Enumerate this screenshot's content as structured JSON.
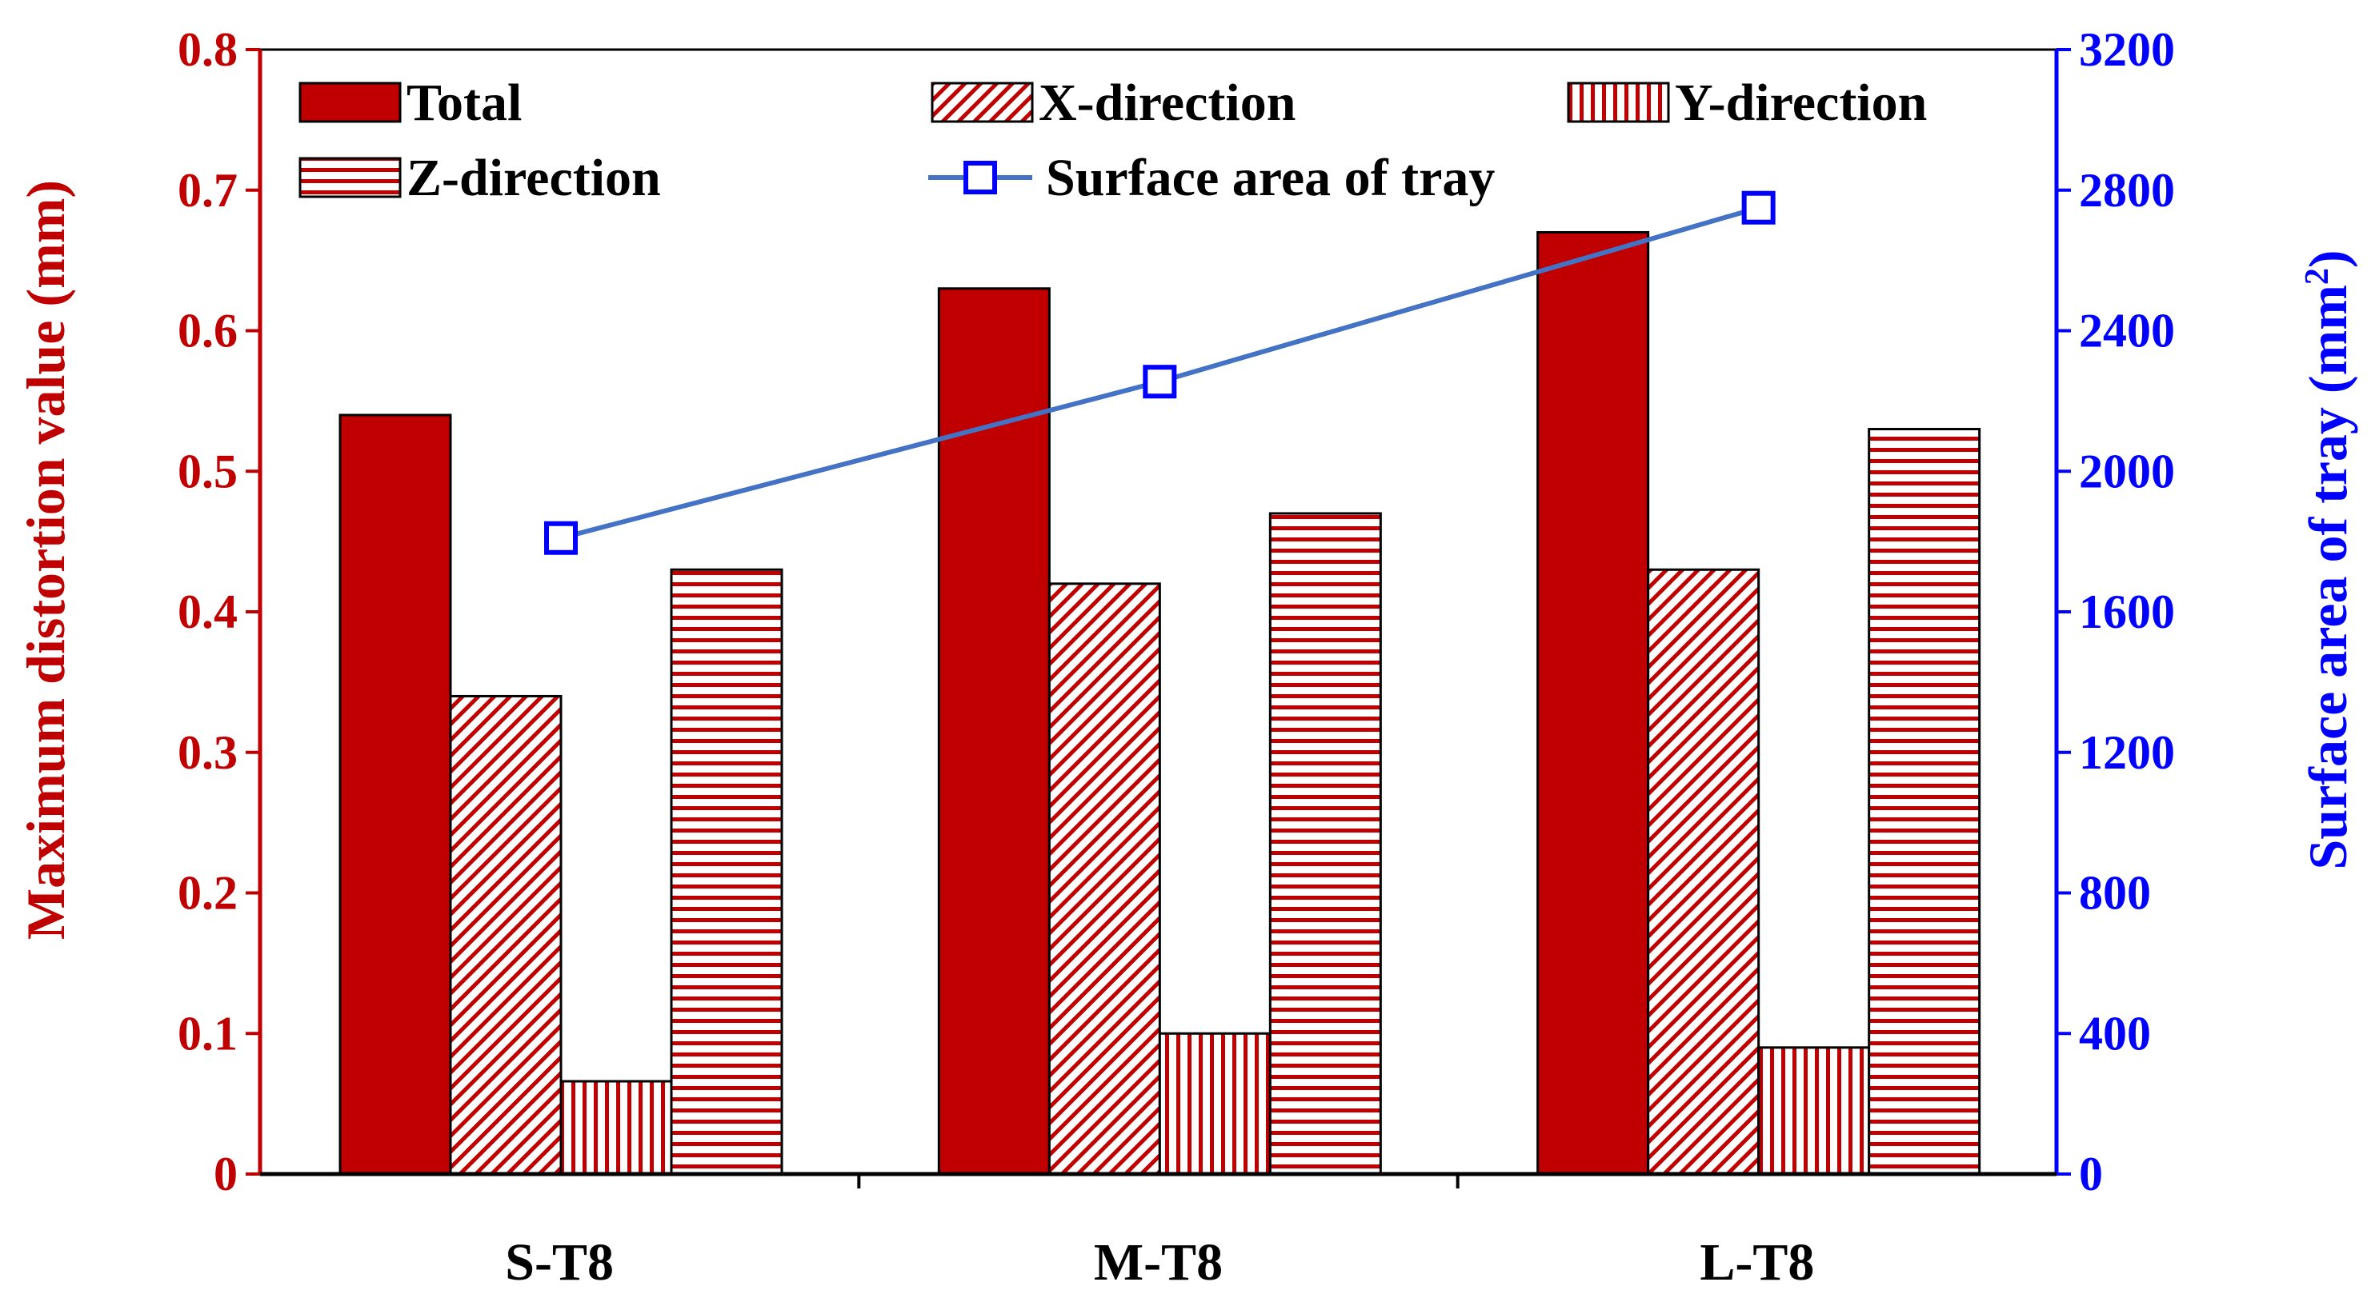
{
  "chart_data": {
    "type": "bar",
    "categories": [
      "S-T8",
      "M-T8",
      "L-T8"
    ],
    "series": [
      {
        "name": "Total",
        "values": [
          0.54,
          0.63,
          0.67
        ],
        "axis": "left",
        "pattern": "solid"
      },
      {
        "name": "X-direction",
        "values": [
          0.34,
          0.42,
          0.43
        ],
        "axis": "left",
        "pattern": "diagonal"
      },
      {
        "name": "Y-direction",
        "values": [
          0.066,
          0.1,
          0.09
        ],
        "axis": "left",
        "pattern": "vertical"
      },
      {
        "name": "Z-direction",
        "values": [
          0.43,
          0.47,
          0.53
        ],
        "axis": "left",
        "pattern": "horizontal"
      }
    ],
    "line_series": {
      "name": "Surface area of tray",
      "values": [
        1810,
        2255,
        2750
      ],
      "axis": "right"
    },
    "ylabel_left": "Maximum distortion value (mm)",
    "ylabel_right_prefix": "Surface area of tray (mm",
    "ylabel_right_sup": "2",
    "ylabel_right_suffix": ")",
    "ylim_left": [
      0,
      0.8
    ],
    "ylim_right": [
      0,
      3200
    ],
    "yticks_left": [
      "0",
      "0.1",
      "0.2",
      "0.3",
      "0.4",
      "0.5",
      "0.6",
      "0.7",
      "0.8"
    ],
    "yticks_right": [
      "0",
      "400",
      "800",
      "1200",
      "1600",
      "2000",
      "2400",
      "2800",
      "3200"
    ],
    "legend_position": "top",
    "colors": {
      "bar": "#C00000",
      "line": "#4472C4",
      "left_axis": "#C00000",
      "right_axis": "#0000FF",
      "outline": "#000000"
    }
  }
}
